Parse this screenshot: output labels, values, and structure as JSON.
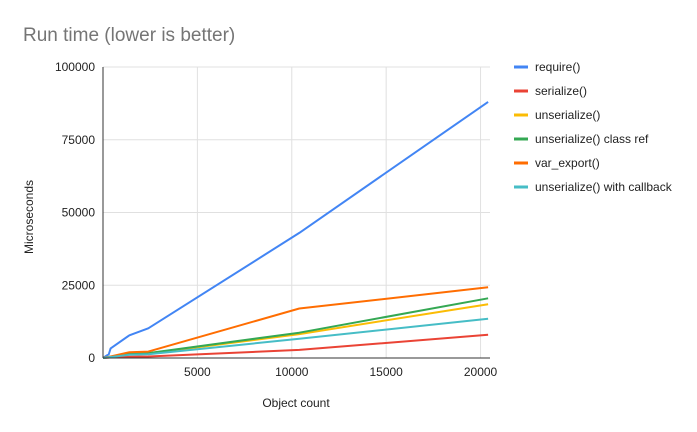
{
  "chart_data": {
    "type": "line",
    "title": "Run time (lower is better)",
    "xlabel": "Object count",
    "ylabel": "Microseconds",
    "xlim": [
      0,
      20500
    ],
    "ylim": [
      0,
      100000
    ],
    "xticks": [
      5000,
      10000,
      15000,
      20000
    ],
    "yticks": [
      0,
      25000,
      50000,
      75000,
      100000
    ],
    "grid": "vertical and horizontal",
    "legend_position": "right",
    "series": [
      {
        "name": "require()",
        "color": "#4285f4",
        "x": [
          0,
          200,
          300,
          400,
          1400,
          2400,
          10400,
          20400
        ],
        "y": [
          0,
          900,
          1200,
          3300,
          7800,
          10200,
          43000,
          88000
        ]
      },
      {
        "name": "serialize()",
        "color": "#ea4335",
        "x": [
          0,
          200,
          300,
          400,
          1400,
          2400,
          10400,
          20400
        ],
        "y": [
          0,
          100,
          150,
          200,
          400,
          500,
          2800,
          8000
        ]
      },
      {
        "name": "unserialize()",
        "color": "#fbbc04",
        "x": [
          0,
          200,
          300,
          400,
          1400,
          2400,
          10400,
          20400
        ],
        "y": [
          0,
          200,
          300,
          400,
          1300,
          1500,
          8200,
          18500
        ]
      },
      {
        "name": "unserialize() class ref",
        "color": "#34a853",
        "x": [
          0,
          200,
          300,
          400,
          1400,
          2400,
          10400,
          20400
        ],
        "y": [
          0,
          250,
          350,
          450,
          1400,
          1700,
          8700,
          20500
        ]
      },
      {
        "name": "var_export()",
        "color": "#ff6d01",
        "x": [
          0,
          200,
          300,
          400,
          1400,
          2400,
          10400,
          20400
        ],
        "y": [
          0,
          250,
          350,
          500,
          2000,
          2200,
          17000,
          24300
        ]
      },
      {
        "name": "unserialize() with callback",
        "color": "#46bdc6",
        "x": [
          0,
          200,
          300,
          400,
          1400,
          2400,
          10400,
          20400
        ],
        "y": [
          0,
          150,
          250,
          350,
          1100,
          1300,
          6600,
          13500
        ]
      }
    ]
  }
}
